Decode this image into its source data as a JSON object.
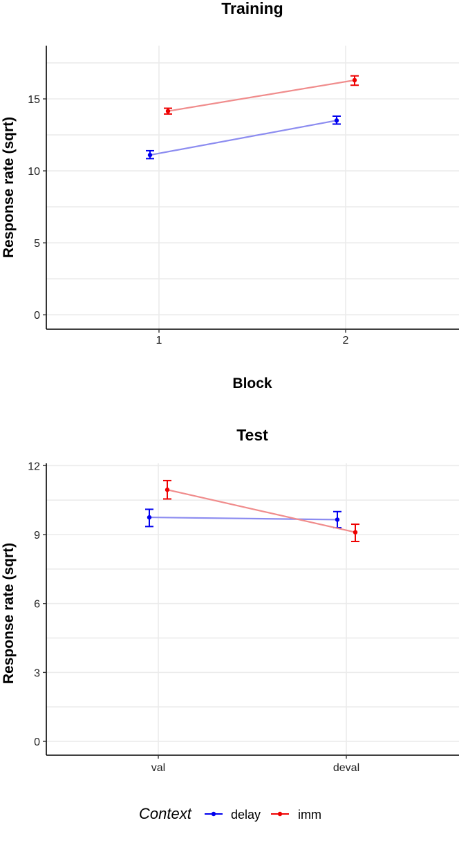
{
  "chart_data": [
    {
      "type": "line",
      "title": "Training",
      "xlabel": "Block",
      "ylabel": "Response rate (sqrt)",
      "categories": [
        "1",
        "2"
      ],
      "ylim": [
        -1,
        18.7
      ],
      "yticks": [
        0,
        5,
        10,
        15
      ],
      "series": [
        {
          "name": "delay",
          "color": "#0000ee",
          "line_color": "#8c8cf0",
          "values": [
            11.1,
            13.5
          ],
          "err_low": [
            10.85,
            13.25
          ],
          "err_high": [
            11.4,
            13.8
          ]
        },
        {
          "name": "imm",
          "color": "#ee0000",
          "line_color": "#f08c8c",
          "values": [
            14.15,
            16.3
          ],
          "err_low": [
            13.95,
            15.95
          ],
          "err_high": [
            14.35,
            16.6
          ]
        }
      ]
    },
    {
      "type": "line",
      "title": "Test",
      "xlabel": "",
      "ylabel": "Response rate (sqrt)",
      "categories": [
        "val",
        "deval"
      ],
      "ylim": [
        -0.6,
        12.1
      ],
      "yticks": [
        0,
        3,
        6,
        9,
        12
      ],
      "series": [
        {
          "name": "delay",
          "color": "#0000ee",
          "line_color": "#8c8cf0",
          "values": [
            9.75,
            9.65
          ],
          "err_low": [
            9.35,
            9.3
          ],
          "err_high": [
            10.1,
            10.0
          ]
        },
        {
          "name": "imm",
          "color": "#ee0000",
          "line_color": "#f08c8c",
          "values": [
            10.95,
            9.1
          ],
          "err_low": [
            10.55,
            8.7
          ],
          "err_high": [
            11.35,
            9.45
          ]
        }
      ]
    }
  ],
  "legend": {
    "title": "Context",
    "items": [
      {
        "label": "delay",
        "color": "#0000ee"
      },
      {
        "label": "imm",
        "color": "#ee0000"
      }
    ]
  }
}
